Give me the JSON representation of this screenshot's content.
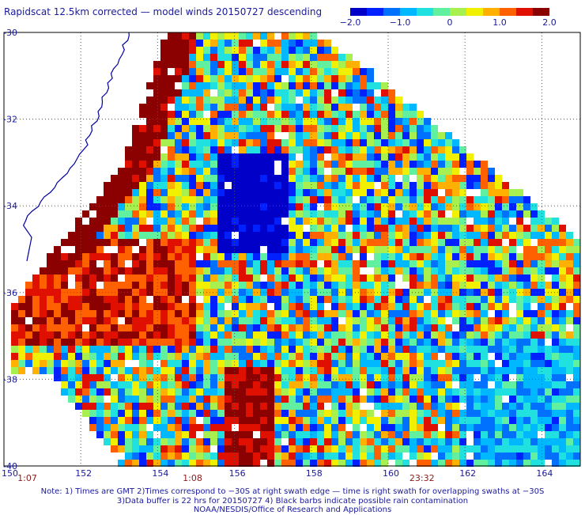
{
  "title": "Rapidscat 12.5km corrected — model winds 20150727 descending",
  "colorbar": {
    "min": -2.0,
    "max": 2.0,
    "tick_labels": [
      "−2.0",
      "−1.0",
      "0",
      "1.0",
      "2.0"
    ],
    "tick_values": [
      -2.0,
      -1.0,
      0,
      1.0,
      2.0
    ],
    "colors": [
      "#0000c8",
      "#0020ff",
      "#0070ff",
      "#00b8ff",
      "#20e0e0",
      "#60f0a0",
      "#a8f050",
      "#f0f000",
      "#ffb000",
      "#ff6000",
      "#e01000",
      "#8b0000"
    ]
  },
  "map": {
    "lon_labels": [
      "150",
      "152",
      "154",
      "156",
      "158",
      "160",
      "162",
      "164"
    ],
    "lat_labels": [
      "-30",
      "-32",
      "-34",
      "-36",
      "-38",
      "-40"
    ],
    "lon_range": [
      150,
      165
    ],
    "lat_range": [
      -40,
      -30
    ],
    "swath_times": [
      "1:07",
      "1:08",
      "23:32"
    ],
    "swath_time_lons": [
      150.6,
      154.9,
      160.8
    ],
    "grid": "dotted"
  },
  "notes": [
    "Note: 1) Times are GMT 2)Times correspond to −30S at right swath edge — time is right swath for overlapping swaths at −30S",
    "3)Data buffer is 22 hrs for 20150727 4) Black barbs indicate possible rain contamination",
    "NOAA/NESDIS/Office of Research and Applications"
  ]
}
